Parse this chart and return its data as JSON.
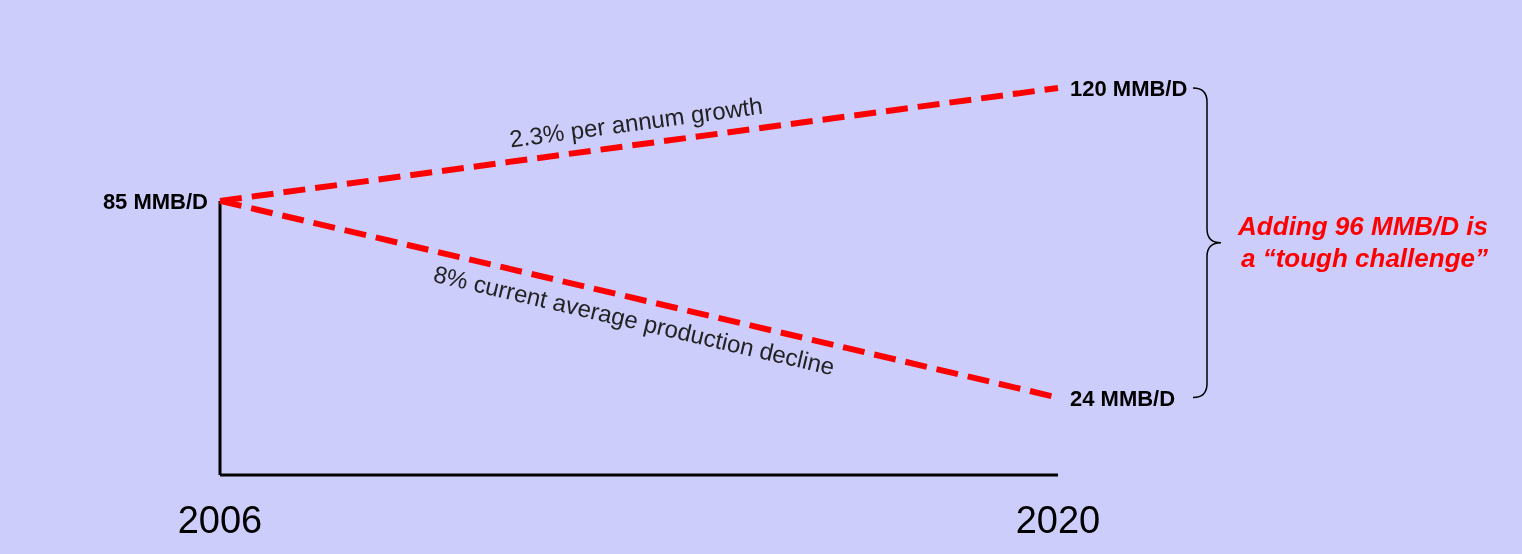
{
  "chart_data": {
    "type": "line",
    "x": [
      2006,
      2020
    ],
    "xlim": [
      2006,
      2020
    ],
    "xticks": [
      2006,
      2020
    ],
    "tick_labels": "x",
    "marker": "none",
    "line_style": "dashed",
    "series": [
      {
        "color": "#ff0000",
        "values": [
          85,
          120
        ],
        "value_labels": [
          "85 MMB/D",
          "120 MMB/D"
        ]
      },
      {
        "color": "#ff0000",
        "values": [
          85,
          24
        ],
        "value_labels": [
          null,
          "24 MMB/D"
        ]
      }
    ],
    "annotations": [
      "2.3% per annum growth",
      "8% current average production decline",
      "Adding 96 MMB/D is a “tough challenge”"
    ]
  }
}
